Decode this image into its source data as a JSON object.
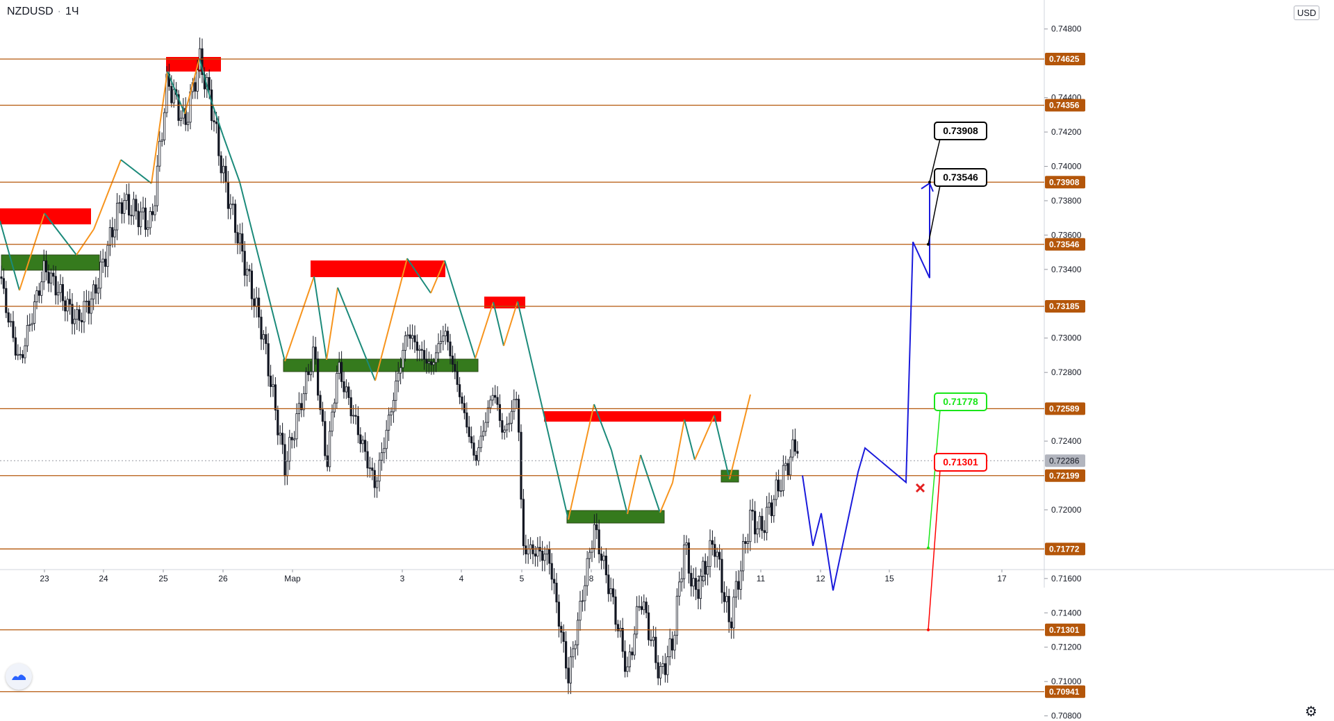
{
  "header": {
    "symbol": "NZDUSD",
    "interval": "1Ч",
    "currency": "USD"
  },
  "chart_data": {
    "type": "candlestick",
    "ylim": [
      0.707,
      0.751
    ],
    "x_ticks": [
      "23",
      "24",
      "25",
      "26",
      "Мар",
      "3",
      "4",
      "5",
      "8",
      "10",
      "11",
      "12",
      "15",
      "17"
    ],
    "y_ticks": [
      "0.74800",
      "0.74400",
      "0.74200",
      "0.74000",
      "0.73800",
      "0.73600",
      "0.73400",
      "0.73000",
      "0.72800",
      "0.72400",
      "0.72000",
      "0.71600",
      "0.71400",
      "0.71200",
      "0.71000",
      "0.70800"
    ],
    "levels": [
      {
        "value": 0.74625,
        "label": "0.74625"
      },
      {
        "value": 0.74356,
        "label": "0.74356"
      },
      {
        "value": 0.73908,
        "label": "0.73908"
      },
      {
        "value": 0.73546,
        "label": "0.73546"
      },
      {
        "value": 0.73185,
        "label": "0.73185"
      },
      {
        "value": 0.72589,
        "label": "0.72589"
      },
      {
        "value": 0.72199,
        "label": "0.72199"
      },
      {
        "value": 0.71772,
        "label": "0.71772"
      },
      {
        "value": 0.71301,
        "label": "0.71301"
      },
      {
        "value": 0.70941,
        "label": "0.70941"
      }
    ],
    "current_price": {
      "value": 0.72286,
      "label": "0.72286"
    },
    "callouts": [
      {
        "label": "0.73908",
        "color": "#000000",
        "value": 0.73908
      },
      {
        "label": "0.73546",
        "color": "#000000",
        "value": 0.73546
      },
      {
        "label": "0.71778",
        "color": "#19e619",
        "value": 0.71778
      },
      {
        "label": "0.71301",
        "color": "#ff0000",
        "value": 0.71301
      }
    ],
    "forecast_path": [
      0.722,
      0.7179,
      0.7198,
      0.7153,
      0.7222,
      0.7236,
      0.7216,
      0.7356,
      0.7335,
      0.7391
    ],
    "colors": {
      "level_line": "#b4560a",
      "level_label": "#b4560a",
      "supply_zone": "#ff0000",
      "demand_zone": "#357a1d",
      "wave_up": "#f7941d",
      "wave_down": "#1b8a7a",
      "forecast": "#1a1adb"
    }
  }
}
